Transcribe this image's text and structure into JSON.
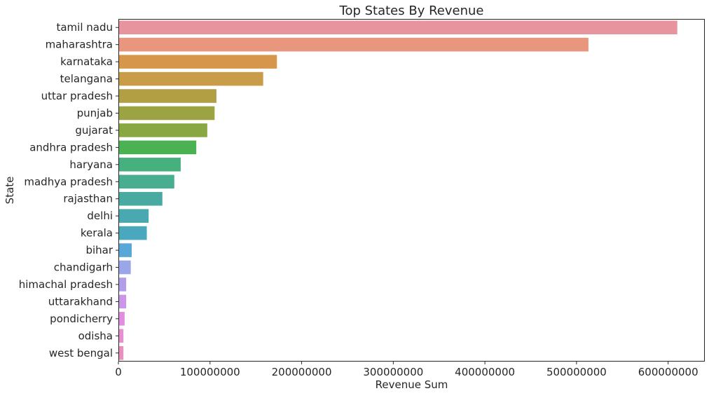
{
  "chart_data": {
    "type": "bar",
    "orientation": "horizontal",
    "title": "Top States By Revenue",
    "xlabel": "Revenue Sum",
    "ylabel": "State",
    "xlim": [
      0,
      640000000
    ],
    "xticks": [
      0,
      100000000,
      200000000,
      300000000,
      400000000,
      500000000,
      600000000
    ],
    "xtick_labels": [
      "0",
      "100000000",
      "200000000",
      "300000000",
      "400000000",
      "500000000",
      "600000000"
    ],
    "grid": false,
    "categories": [
      "tamil nadu",
      "maharashtra",
      "karnataka",
      "telangana",
      "uttar pradesh",
      "punjab",
      "gujarat",
      "andhra pradesh",
      "haryana",
      "madhya pradesh",
      "rajasthan",
      "delhi",
      "kerala",
      "bihar",
      "chandigarh",
      "himachal pradesh",
      "uttarakhand",
      "pondicherry",
      "odisha",
      "west bengal"
    ],
    "values": [
      610000000,
      513000000,
      173000000,
      158000000,
      107000000,
      105000000,
      97000000,
      85000000,
      68000000,
      61000000,
      48000000,
      33000000,
      31000000,
      14500000,
      13500000,
      8500000,
      8500000,
      6800000,
      5500000,
      5500000
    ],
    "colors": [
      "#e8949f",
      "#e8967e",
      "#d6974c",
      "#c99c4a",
      "#b29f44",
      "#9ba343",
      "#89a843",
      "#4bb254",
      "#47b07f",
      "#49ad8f",
      "#49aa9f",
      "#4aa9b0",
      "#4aa7bd",
      "#57a7d8",
      "#99a6e8",
      "#b29ee8",
      "#cb96e8",
      "#e08ee0",
      "#e88fcf",
      "#e891bc"
    ]
  }
}
